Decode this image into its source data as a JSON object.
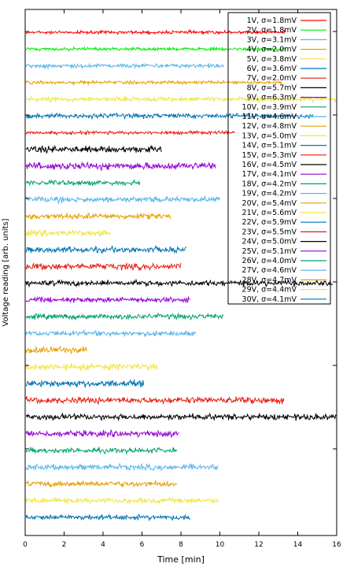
{
  "chart_data": {
    "type": "line",
    "title": "",
    "xlabel": "Time [min]",
    "ylabel": "Voltage reading [arb. units]",
    "xlim": [
      0,
      16
    ],
    "xticks": [
      "0",
      "2",
      "4",
      "6",
      "8",
      "10",
      "12",
      "14",
      "16"
    ],
    "grid": false,
    "legend_position": "top-right",
    "series": [
      {
        "name": "1V, σ=1.8mV",
        "color": "#ff0000",
        "x_end": 13.4
      },
      {
        "name": "2V, σ=1.8mV",
        "color": "#00ee00",
        "x_end": 13.4
      },
      {
        "name": "3V, σ=3.1mV",
        "color": "#56b4e9",
        "x_end": 10.2
      },
      {
        "name": "4V, σ=2.0mV",
        "color": "#e6a000",
        "x_end": 13.2
      },
      {
        "name": "5V, σ=3.8mV",
        "color": "#f0e442",
        "x_end": 16.0
      },
      {
        "name": "6V, σ=3.6mV",
        "color": "#0072b2",
        "x_end": 14.8
      },
      {
        "name": "7V, σ=2.0mV",
        "color": "#e51e10",
        "x_end": 10.8
      },
      {
        "name": "8V, σ=5.7mV",
        "color": "#000000",
        "x_end": 7.0
      },
      {
        "name": "9V, σ=6.3mV",
        "color": "#9400d3",
        "x_end": 9.8
      },
      {
        "name": "10V, σ=3.9mV",
        "color": "#009e73",
        "x_end": 5.9
      },
      {
        "name": "11V, σ=4.6mV",
        "color": "#56b4e9",
        "x_end": 10.0
      },
      {
        "name": "12V, σ=4.8mV",
        "color": "#e69f00",
        "x_end": 7.5
      },
      {
        "name": "13V, σ=5.0mV",
        "color": "#f0e442",
        "x_end": 4.4
      },
      {
        "name": "14V, σ=5.1mV",
        "color": "#0072b2",
        "x_end": 8.3
      },
      {
        "name": "15V, σ=5.3mV",
        "color": "#e51e10",
        "x_end": 8.0
      },
      {
        "name": "16V, σ=4.5mV",
        "color": "#000000",
        "x_end": 15.8
      },
      {
        "name": "17V, σ=4.1mV",
        "color": "#9400d3",
        "x_end": 8.5
      },
      {
        "name": "18V, σ=4.2mV",
        "color": "#009e73",
        "x_end": 10.2
      },
      {
        "name": "19V, σ=4.2mV",
        "color": "#56b4e9",
        "x_end": 8.8
      },
      {
        "name": "20V, σ=5.4mV",
        "color": "#e69f00",
        "x_end": 3.2
      },
      {
        "name": "21V, σ=5.6mV",
        "color": "#f0e442",
        "x_end": 6.8
      },
      {
        "name": "22V, σ=5.9mV",
        "color": "#0072b2",
        "x_end": 6.1
      },
      {
        "name": "23V, σ=5.5mV",
        "color": "#e51e10",
        "x_end": 13.3
      },
      {
        "name": "24V, σ=5.0mV",
        "color": "#000000",
        "x_end": 16.0
      },
      {
        "name": "25V, σ=5.1mV",
        "color": "#9400d3",
        "x_end": 7.9
      },
      {
        "name": "26V, σ=4.0mV",
        "color": "#009e73",
        "x_end": 7.8
      },
      {
        "name": "27V, σ=4.6mV",
        "color": "#56b4e9",
        "x_end": 9.9
      },
      {
        "name": "28V, σ=4.7mV",
        "color": "#e69f00",
        "x_end": 7.8
      },
      {
        "name": "29V, σ=4.4mV",
        "color": "#f0e442",
        "x_end": 9.9
      },
      {
        "name": "30V, σ=4.1mV",
        "color": "#0072b2",
        "x_end": 8.5
      }
    ]
  }
}
